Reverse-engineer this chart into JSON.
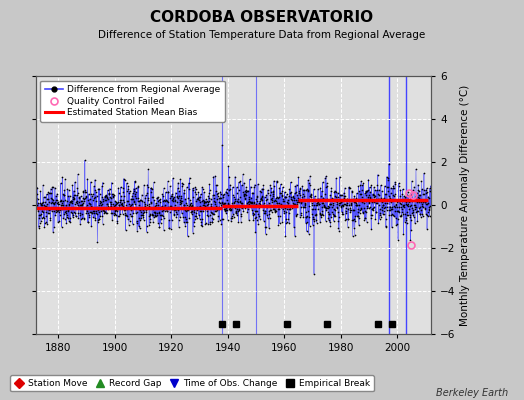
{
  "title": "CORDOBA OBSERVATORIO",
  "subtitle": "Difference of Station Temperature Data from Regional Average",
  "ylabel_right": "Monthly Temperature Anomaly Difference (°C)",
  "xlim": [
    1872,
    2012
  ],
  "ylim": [
    -6,
    6
  ],
  "yticks": [
    -6,
    -4,
    -2,
    0,
    2,
    4,
    6
  ],
  "xticks": [
    1880,
    1900,
    1920,
    1940,
    1960,
    1980,
    2000
  ],
  "bg_color": "#c8c8c8",
  "plot_bg_color": "#e0e0e0",
  "grid_color": "#ffffff",
  "data_line_color": "#4444ff",
  "data_marker_color": "#000000",
  "bias_line_color": "#ff0000",
  "qc_fail_color": "#ff69b4",
  "vertical_line_color": "#4444ff",
  "tall_vline_years": [
    1997,
    2003
  ],
  "small_vline_years": [
    1938,
    1950
  ],
  "empirical_break_years": [
    1938,
    1943,
    1961,
    1975,
    1993,
    1998
  ],
  "qc_fail_points": [
    {
      "year": 2004.2,
      "value": 0.55
    },
    {
      "year": 2005.5,
      "value": 0.45
    },
    {
      "year": 2005.0,
      "value": -1.85
    }
  ],
  "bias_breakpoints": [
    1938,
    1965
  ],
  "bias_values": [
    -0.12,
    -0.05,
    0.25
  ],
  "seed": 42,
  "start_year": 1872,
  "end_year": 2011,
  "noise_std": 0.62,
  "footer_text": "Berkeley Earth"
}
